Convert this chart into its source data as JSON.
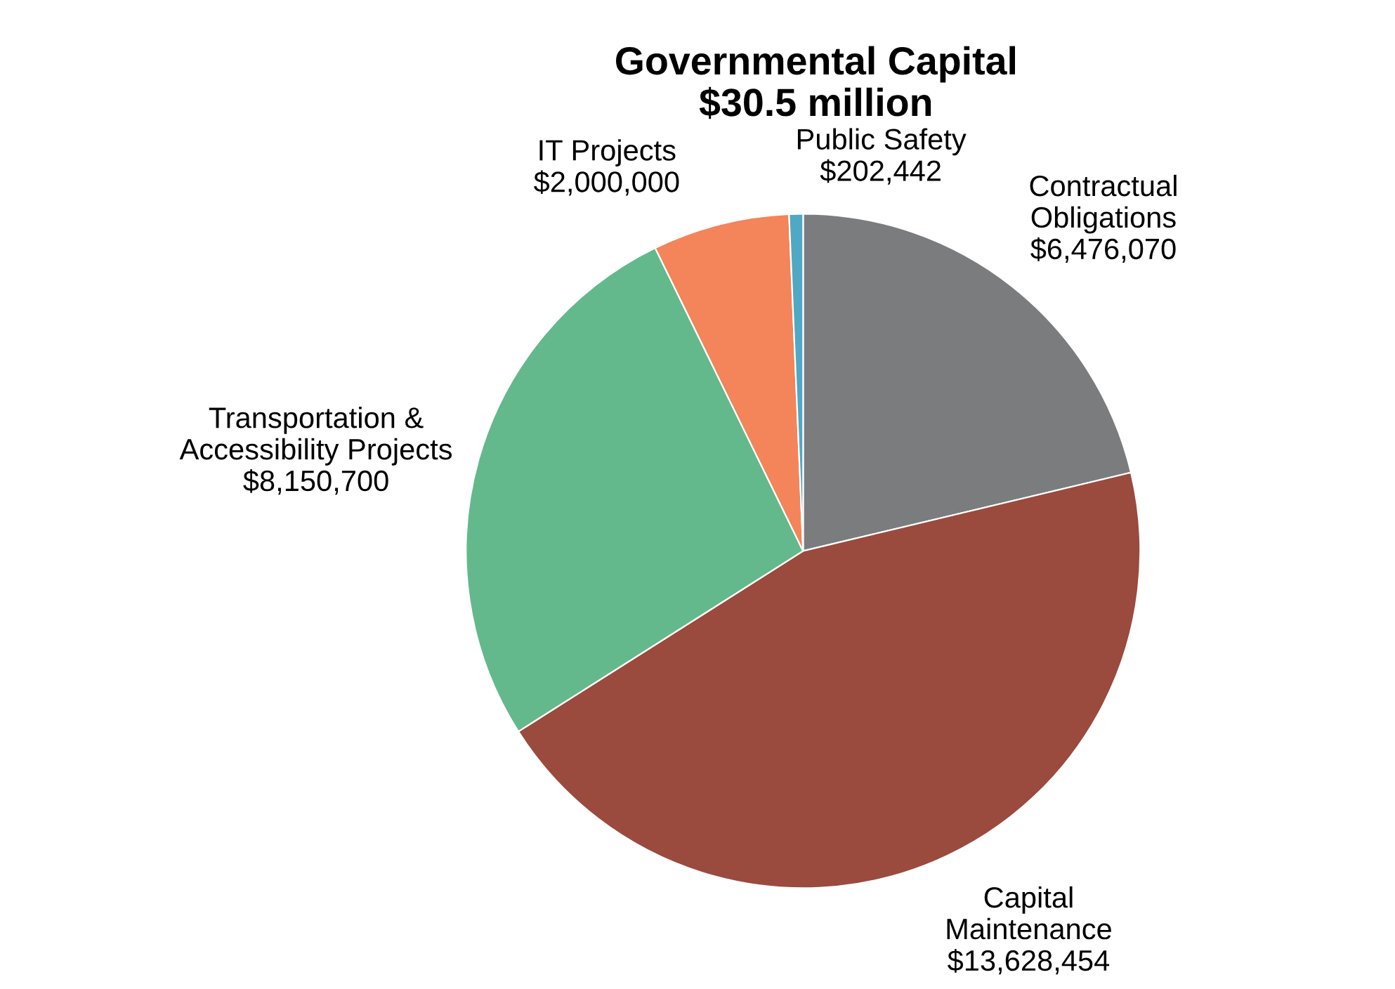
{
  "chart_data": {
    "type": "pie",
    "title": "Governmental Capital",
    "subtitle": "$30.5 million",
    "categories": [
      "Contractual\nObligations",
      "Capital\nMaintenance",
      "Transportation &\nAccessibility Projects",
      "IT Projects",
      "Public Safety"
    ],
    "values": [
      6476070,
      13628454,
      8150700,
      2000000,
      202442
    ],
    "value_labels": [
      "$6,476,070",
      "$13,628,454",
      "$8,150,700",
      "$2,000,000",
      "$202,442"
    ],
    "colors": [
      "#7a7c7e",
      "#9b4a3e",
      "#63b98c",
      "#f4845a",
      "#4fa8c4"
    ]
  }
}
